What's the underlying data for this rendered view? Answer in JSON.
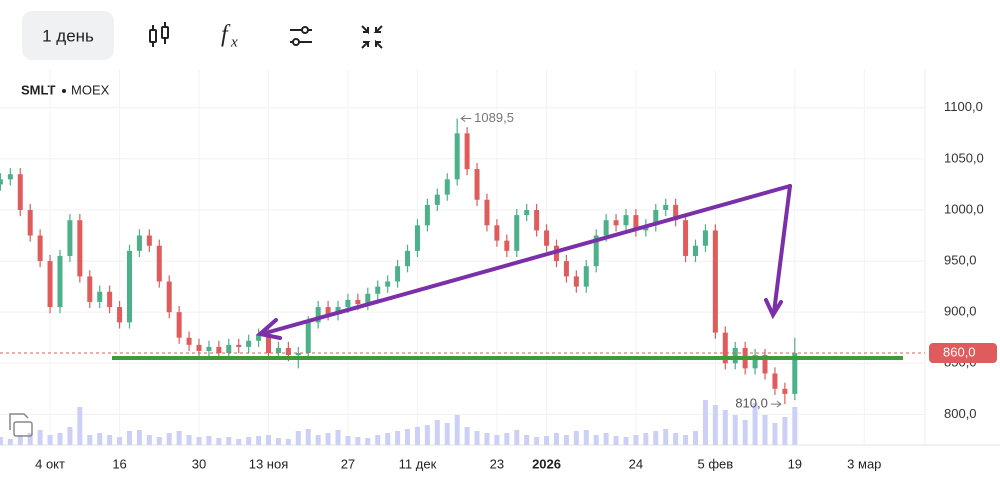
{
  "toolbar": {
    "interval": "1 день",
    "formula_icon": [
      "f",
      "x"
    ]
  },
  "chart_data": {
    "type": "candlestick",
    "ticker": "SMLT",
    "exchange": "MOEX",
    "categories": [
      null,
      null,
      null,
      null,
      null,
      "4 окт",
      null,
      null,
      null,
      null,
      null,
      null,
      "16",
      null,
      null,
      null,
      null,
      null,
      null,
      null,
      "30",
      null,
      null,
      null,
      null,
      null,
      null,
      "13 ноя",
      null,
      null,
      null,
      null,
      null,
      null,
      null,
      "27",
      null,
      null,
      null,
      null,
      null,
      null,
      "11 дек",
      null,
      null,
      null,
      null,
      null,
      null,
      null,
      "23",
      null,
      null,
      null,
      null,
      "2026",
      null,
      null,
      null,
      null,
      null,
      null,
      null,
      null,
      "24",
      null,
      null,
      null,
      null,
      null,
      null,
      null,
      "5 фев",
      null,
      null,
      null,
      null,
      null,
      null,
      null,
      "19",
      null,
      null,
      null,
      null,
      null,
      null,
      "3 мар"
    ],
    "open": [
      1025,
      1030,
      1035,
      1000,
      975,
      950,
      905,
      955,
      990,
      935,
      910,
      920,
      905,
      890,
      960,
      975,
      965,
      930,
      900,
      875,
      868,
      862,
      866,
      860,
      868,
      866,
      872,
      878,
      860,
      865,
      858,
      860,
      890,
      905,
      898,
      905,
      912,
      908,
      918,
      925,
      930,
      945,
      960,
      985,
      1005,
      1015,
      1030,
      1075,
      1040,
      1010,
      985,
      970,
      960,
      995,
      1000,
      980,
      965,
      950,
      935,
      925,
      945,
      975,
      990,
      985,
      995,
      980,
      985,
      1000,
      1005,
      990,
      955,
      965,
      980,
      880,
      850,
      865,
      845,
      858,
      840,
      825,
      820,
      null,
      null,
      null,
      null,
      null,
      null,
      null
    ],
    "high": [
      1036,
      1041,
      1041,
      1006,
      981,
      956,
      961,
      996,
      996,
      941,
      926,
      926,
      911,
      966,
      981,
      981,
      971,
      936,
      906,
      881,
      874,
      872,
      872,
      874,
      874,
      878,
      884,
      884,
      871,
      871,
      866,
      896,
      911,
      911,
      911,
      918,
      918,
      924,
      931,
      936,
      951,
      966,
      991,
      1011,
      1021,
      1036,
      1089.5,
      1081,
      1046,
      1016,
      991,
      976,
      1001,
      1006,
      1006,
      986,
      971,
      956,
      941,
      951,
      981,
      996,
      996,
      1001,
      1001,
      991,
      1006,
      1011,
      1011,
      996,
      971,
      986,
      986,
      886,
      871,
      871,
      864,
      864,
      846,
      831,
      875,
      null,
      null,
      null,
      null,
      null,
      null,
      null
    ],
    "low": [
      1019,
      1024,
      994,
      969,
      944,
      899,
      899,
      949,
      929,
      904,
      904,
      899,
      884,
      884,
      954,
      959,
      924,
      894,
      869,
      862,
      856,
      856,
      854,
      854,
      860,
      860,
      866,
      854,
      854,
      852,
      845,
      854,
      884,
      892,
      892,
      899,
      902,
      902,
      912,
      919,
      924,
      939,
      954,
      979,
      999,
      1009,
      1024,
      1034,
      1004,
      979,
      964,
      954,
      954,
      989,
      974,
      959,
      944,
      929,
      919,
      919,
      939,
      969,
      979,
      979,
      974,
      974,
      979,
      994,
      984,
      949,
      949,
      959,
      874,
      844,
      844,
      839,
      839,
      834,
      819,
      810,
      814,
      null,
      null,
      null,
      null,
      null,
      null,
      null
    ],
    "close": [
      1030,
      1035,
      1000,
      975,
      950,
      905,
      955,
      990,
      935,
      910,
      920,
      905,
      890,
      960,
      975,
      965,
      930,
      900,
      875,
      868,
      862,
      866,
      860,
      868,
      866,
      872,
      878,
      860,
      865,
      858,
      860,
      890,
      905,
      898,
      905,
      912,
      908,
      918,
      925,
      930,
      945,
      960,
      985,
      1005,
      1015,
      1030,
      1075,
      1040,
      1010,
      985,
      970,
      960,
      995,
      1000,
      980,
      965,
      950,
      935,
      925,
      945,
      975,
      990,
      985,
      995,
      980,
      985,
      1000,
      1005,
      990,
      955,
      965,
      980,
      880,
      850,
      865,
      845,
      858,
      840,
      825,
      820,
      860,
      null,
      null,
      null,
      null,
      null,
      null,
      null
    ],
    "volume": [
      8,
      6,
      10,
      12,
      15,
      10,
      12,
      18,
      38,
      10,
      12,
      10,
      8,
      14,
      15,
      10,
      8,
      12,
      14,
      10,
      8,
      9,
      7,
      8,
      6,
      8,
      9,
      10,
      7,
      6,
      14,
      16,
      10,
      12,
      15,
      9,
      8,
      7,
      10,
      12,
      14,
      16,
      18,
      20,
      25,
      22,
      30,
      18,
      14,
      12,
      10,
      12,
      15,
      10,
      8,
      9,
      12,
      10,
      14,
      15,
      10,
      12,
      9,
      8,
      10,
      12,
      14,
      16,
      12,
      10,
      14,
      45,
      40,
      35,
      30,
      25,
      42,
      30,
      22,
      28,
      38,
      null,
      null,
      null,
      null,
      null,
      null,
      null
    ],
    "up_color": "#4cb089",
    "down_color": "#e05c5c",
    "volume_color": "#cdd0f6",
    "ylim": [
      770,
      1137
    ],
    "yticks": [
      {
        "value": 800,
        "label": "800,0"
      },
      {
        "value": 850,
        "label": "850,0"
      },
      {
        "value": 900,
        "label": "900,0"
      },
      {
        "value": 950,
        "label": "950,0"
      },
      {
        "value": 1000,
        "label": "1000,0"
      },
      {
        "value": 1050,
        "label": "1050,0"
      },
      {
        "value": 1100,
        "label": "1100,0"
      }
    ],
    "grid": true,
    "last_price": {
      "value": 860,
      "label": "860,0"
    },
    "max_label": {
      "value": 1089.5,
      "label": "1089,5"
    },
    "min_label": {
      "value": 810,
      "label": "810,0"
    }
  }
}
